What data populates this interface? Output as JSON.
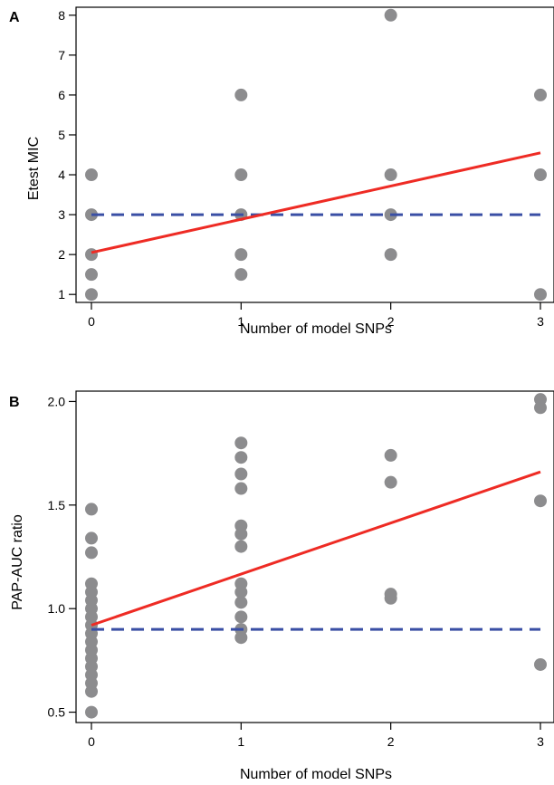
{
  "colors": {
    "points": "#8c8c8e",
    "fit_line": "#ee2b24",
    "reference_line": "#3a4fa5",
    "axes": "#000000"
  },
  "chart_data": [
    {
      "panel": "A",
      "type": "scatter",
      "xlabel": "Number of model SNPs",
      "ylabel": "Etest MIC",
      "xlim": [
        -0.15,
        3.05
      ],
      "ylim": [
        0.8,
        8.2
      ],
      "xticks": [
        0,
        1,
        2,
        3
      ],
      "yticks": [
        1,
        2,
        3,
        4,
        5,
        6,
        7,
        8
      ],
      "points": [
        {
          "x": 0,
          "y": 1
        },
        {
          "x": 0,
          "y": 1.5
        },
        {
          "x": 0,
          "y": 2
        },
        {
          "x": 0,
          "y": 3
        },
        {
          "x": 0,
          "y": 4
        },
        {
          "x": 1,
          "y": 1.5
        },
        {
          "x": 1,
          "y": 2
        },
        {
          "x": 1,
          "y": 3
        },
        {
          "x": 1,
          "y": 4
        },
        {
          "x": 1,
          "y": 6
        },
        {
          "x": 2,
          "y": 2
        },
        {
          "x": 2,
          "y": 3
        },
        {
          "x": 2,
          "y": 4
        },
        {
          "x": 2,
          "y": 8
        },
        {
          "x": 3,
          "y": 1
        },
        {
          "x": 3,
          "y": 4
        },
        {
          "x": 3,
          "y": 6
        }
      ],
      "fit_line": {
        "x": [
          0,
          3
        ],
        "y": [
          2.05,
          4.55
        ]
      },
      "reference_line": {
        "y": 3,
        "x": [
          0,
          3
        ]
      }
    },
    {
      "panel": "B",
      "type": "scatter",
      "xlabel": "Number of model SNPs",
      "ylabel": "PAP-AUC ratio",
      "xlim": [
        -0.15,
        3.05
      ],
      "ylim": [
        0.45,
        2.05
      ],
      "xticks": [
        0,
        1,
        2,
        3
      ],
      "yticks": [
        0.5,
        1.0,
        1.5,
        2.0
      ],
      "ytick_labels": [
        "0.5",
        "1.0",
        "1.5",
        "2.0"
      ],
      "points": [
        {
          "x": 0,
          "y": 0.5
        },
        {
          "x": 0,
          "y": 0.6
        },
        {
          "x": 0,
          "y": 0.64
        },
        {
          "x": 0,
          "y": 0.68
        },
        {
          "x": 0,
          "y": 0.72
        },
        {
          "x": 0,
          "y": 0.76
        },
        {
          "x": 0,
          "y": 0.8
        },
        {
          "x": 0,
          "y": 0.84
        },
        {
          "x": 0,
          "y": 0.88
        },
        {
          "x": 0,
          "y": 0.92
        },
        {
          "x": 0,
          "y": 0.96
        },
        {
          "x": 0,
          "y": 1.0
        },
        {
          "x": 0,
          "y": 1.04
        },
        {
          "x": 0,
          "y": 1.08
        },
        {
          "x": 0,
          "y": 1.12
        },
        {
          "x": 0,
          "y": 1.27
        },
        {
          "x": 0,
          "y": 1.34
        },
        {
          "x": 0,
          "y": 1.48
        },
        {
          "x": 1,
          "y": 0.86
        },
        {
          "x": 1,
          "y": 0.9
        },
        {
          "x": 1,
          "y": 0.96
        },
        {
          "x": 1,
          "y": 1.03
        },
        {
          "x": 1,
          "y": 1.08
        },
        {
          "x": 1,
          "y": 1.12
        },
        {
          "x": 1,
          "y": 1.3
        },
        {
          "x": 1,
          "y": 1.36
        },
        {
          "x": 1,
          "y": 1.4
        },
        {
          "x": 1,
          "y": 1.58
        },
        {
          "x": 1,
          "y": 1.65
        },
        {
          "x": 1,
          "y": 1.73
        },
        {
          "x": 1,
          "y": 1.8
        },
        {
          "x": 2,
          "y": 1.05
        },
        {
          "x": 2,
          "y": 1.07
        },
        {
          "x": 2,
          "y": 1.61
        },
        {
          "x": 2,
          "y": 1.74
        },
        {
          "x": 3,
          "y": 0.73
        },
        {
          "x": 3,
          "y": 1.52
        },
        {
          "x": 3,
          "y": 1.97
        },
        {
          "x": 3,
          "y": 2.01
        }
      ],
      "fit_line": {
        "x": [
          0,
          3
        ],
        "y": [
          0.92,
          1.66
        ]
      },
      "reference_line": {
        "y": 0.9,
        "x": [
          0,
          3
        ]
      }
    }
  ]
}
